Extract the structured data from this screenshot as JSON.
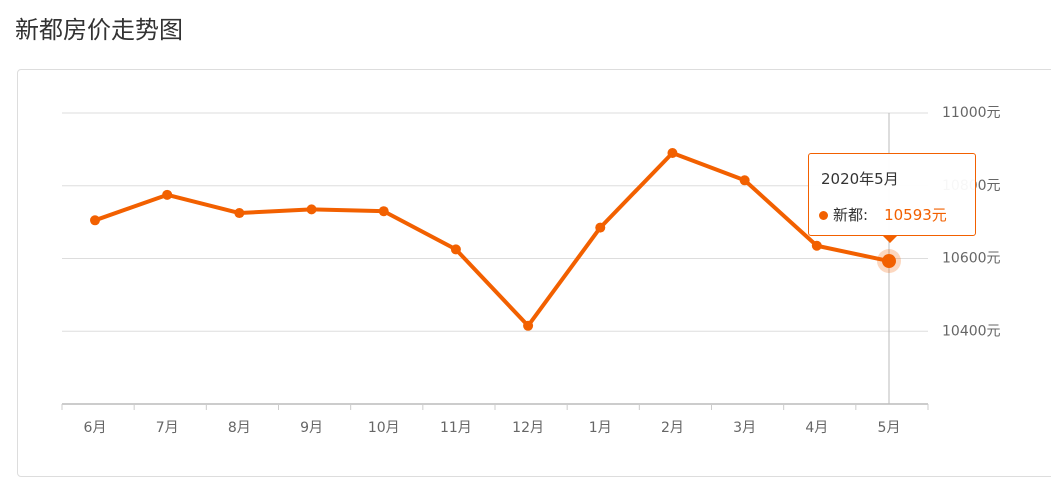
{
  "page_title": "新都房价走势图",
  "chart_data": {
    "type": "line",
    "categories": [
      "6月",
      "7月",
      "8月",
      "9月",
      "10月",
      "11月",
      "12月",
      "1月",
      "2月",
      "3月",
      "4月",
      "5月"
    ],
    "series": [
      {
        "name": "新都",
        "color": "#f26000",
        "values": [
          10705,
          10775,
          10725,
          10735,
          10730,
          10625,
          10415,
          10685,
          10890,
          10815,
          10635,
          10593
        ]
      }
    ],
    "ylim": [
      10200,
      11000
    ],
    "yticks": [
      {
        "value": 10400,
        "label": "10400元"
      },
      {
        "value": 10600,
        "label": "10600元"
      },
      {
        "value": 10800,
        "label": "10800元"
      },
      {
        "value": 11000,
        "label": "11000元"
      }
    ],
    "grid": true,
    "tooltip": {
      "title": "2020年5月",
      "label": "新都:",
      "value_label": "10593元"
    }
  }
}
